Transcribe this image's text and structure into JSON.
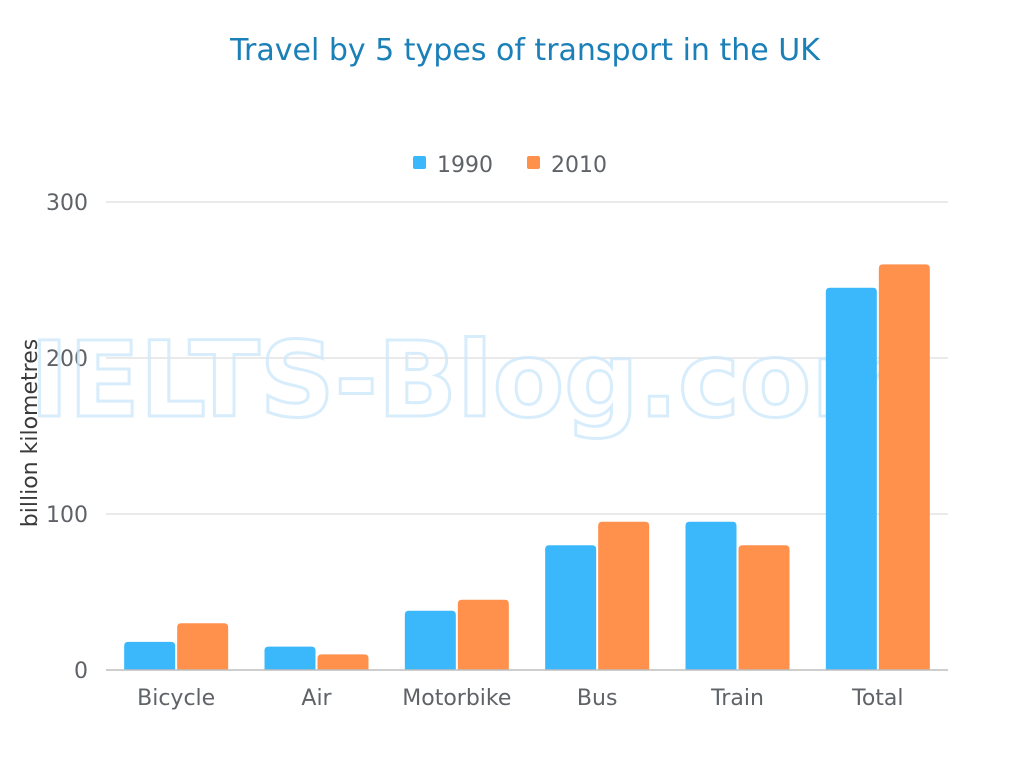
{
  "chart_data": {
    "type": "bar",
    "title": "Travel by 5 types of transport in the UK",
    "ylabel": "billion kilometres",
    "xlabel": "",
    "categories": [
      "Bicycle",
      "Air",
      "Motorbike",
      "Bus",
      "Train",
      "Total"
    ],
    "series": [
      {
        "name": "1990",
        "color": "#3bb8fc",
        "values": [
          18,
          15,
          38,
          80,
          95,
          245
        ]
      },
      {
        "name": "2010",
        "color": "#ff914d",
        "values": [
          30,
          10,
          45,
          95,
          80,
          260
        ]
      }
    ],
    "ylim": [
      0,
      300
    ],
    "yticks": [
      0,
      100,
      200,
      300
    ],
    "grid": true,
    "legend": "top-center"
  },
  "watermark": "IELTS-Blog.com"
}
